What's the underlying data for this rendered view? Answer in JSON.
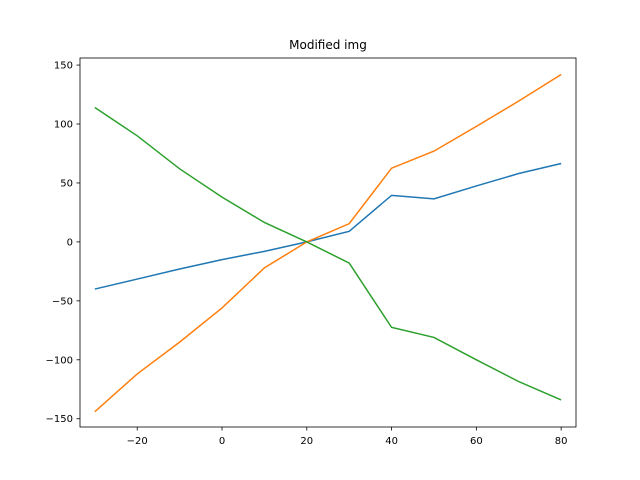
{
  "chart_data": {
    "type": "line",
    "title": "Modified img",
    "xlabel": "",
    "ylabel": "",
    "xlim": [
      -33.5,
      83.5
    ],
    "ylim": [
      -157,
      156
    ],
    "xticks": [
      -20,
      0,
      20,
      40,
      60,
      80
    ],
    "yticks": [
      -150,
      -100,
      -50,
      0,
      50,
      100,
      150
    ],
    "grid": false,
    "x": [
      -30,
      -20,
      -10,
      0,
      10,
      20,
      30,
      40,
      50,
      60,
      70,
      80
    ],
    "series": [
      {
        "color": "#1f77b4",
        "values": [
          -40,
          -31.5,
          -23,
          -15,
          -8,
          0,
          9,
          39.5,
          36.5,
          47.5,
          58,
          66.5
        ]
      },
      {
        "color": "#ff7f0e",
        "values": [
          -144,
          -112,
          -85,
          -56,
          -22,
          0,
          15.5,
          62.5,
          77,
          98,
          119.5,
          142
        ]
      },
      {
        "color": "#2ca02c",
        "values": [
          114,
          90,
          62,
          38,
          16.5,
          0,
          -18,
          -72.5,
          -81,
          -100,
          -118.5,
          -134
        ]
      }
    ]
  }
}
